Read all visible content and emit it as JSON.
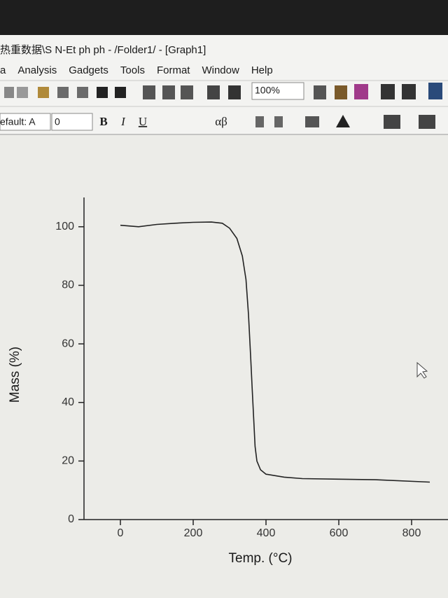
{
  "window": {
    "title": "热重数据\\S N-Et ph ph - /Folder1/ - [Graph1]",
    "menu": [
      "a",
      "Analysis",
      "Gadgets",
      "Tools",
      "Format",
      "Window",
      "Help"
    ],
    "zoom": "100%",
    "font_name": "efault: A",
    "font_size": "0",
    "format_buttons": [
      "B",
      "I",
      "U",
      "αβ"
    ]
  },
  "chart_data": {
    "type": "line",
    "xlabel": "Temp. (°C)",
    "ylabel": "Mass (%)",
    "x": [
      0,
      50,
      100,
      150,
      200,
      250,
      280,
      300,
      320,
      335,
      345,
      352,
      358,
      362,
      366,
      370,
      375,
      385,
      400,
      450,
      500,
      600,
      700,
      850
    ],
    "series": [
      {
        "name": "Mass",
        "color": "#222222",
        "values": [
          100.5,
          100,
          100.8,
          101.2,
          101.5,
          101.6,
          101.2,
          99.5,
          96,
          90,
          82,
          70,
          55,
          45,
          35,
          25,
          20,
          17,
          15.5,
          14.5,
          14,
          13.8,
          13.6,
          12.8
        ]
      }
    ],
    "xlim": [
      -100,
      900
    ],
    "ylim": [
      0,
      110
    ],
    "xticks": [
      0,
      200,
      400,
      600,
      800
    ],
    "yticks": [
      0,
      20,
      40,
      60,
      80,
      100
    ]
  }
}
